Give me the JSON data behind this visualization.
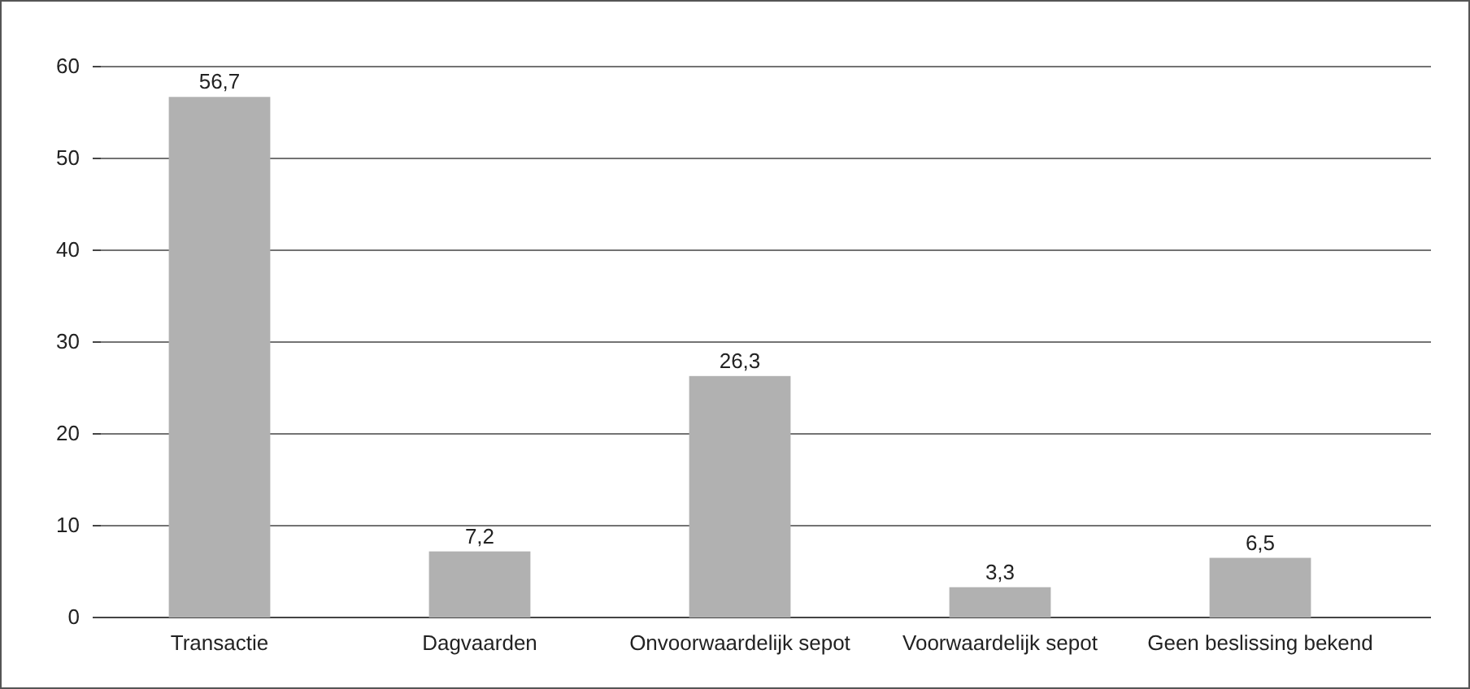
{
  "chart_data": {
    "type": "bar",
    "categories": [
      "Transactie",
      "Dagvaarden",
      "Onvoorwaardelijk sepot",
      "Voorwaardelijk sepot",
      "Geen beslissing bekend"
    ],
    "values": [
      56.7,
      7.2,
      26.3,
      3.3,
      6.5
    ],
    "value_labels": [
      "56,7",
      "7,2",
      "26,3",
      "3,3",
      "6,5"
    ],
    "color": "#b1b1b1",
    "ylim": [
      0,
      60
    ],
    "yticks": [
      0,
      10,
      20,
      30,
      40,
      50,
      60
    ],
    "grid": "y"
  }
}
